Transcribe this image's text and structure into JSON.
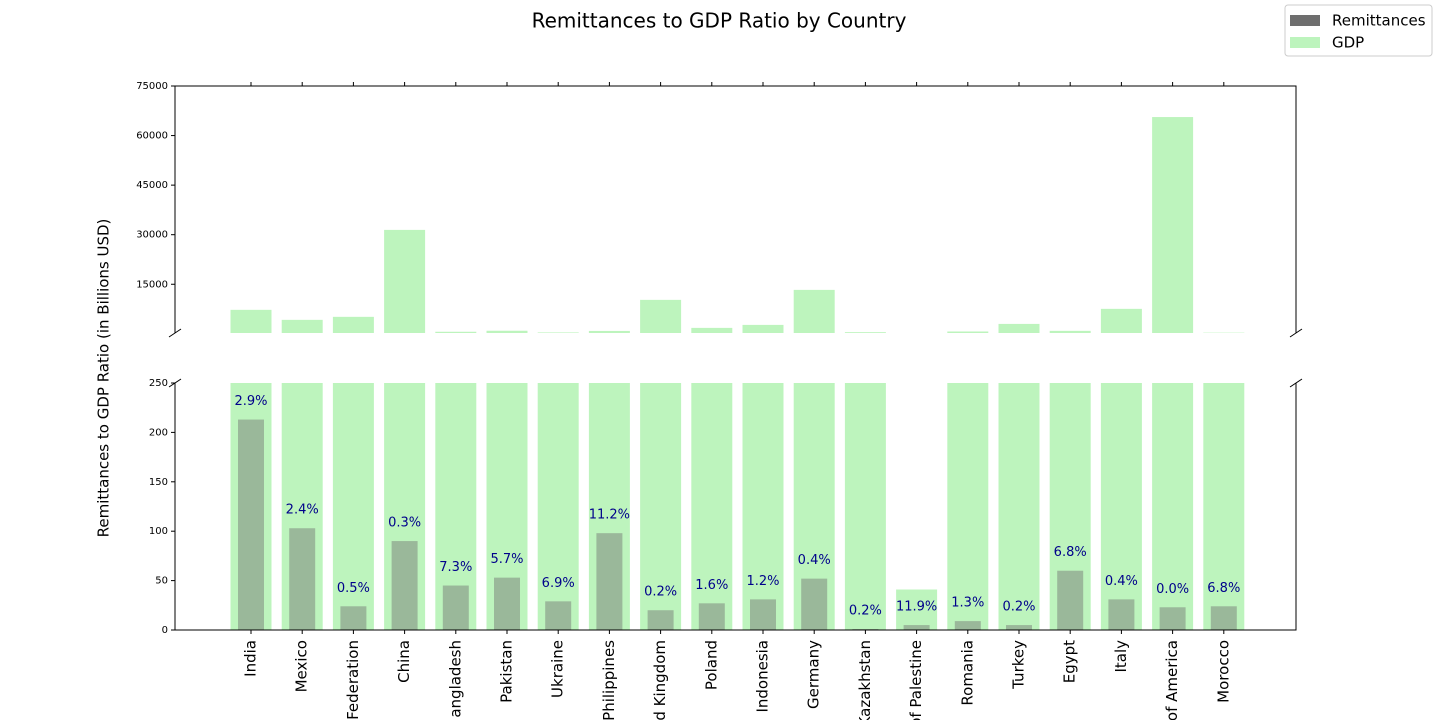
{
  "chart_data": {
    "type": "bar",
    "title": "Remittances to GDP Ratio by Country",
    "ylabel": "Remittances to GDP Ratio (in Billions USD)",
    "categories": [
      "India",
      "Mexico",
      "Federation",
      "China",
      "angladesh",
      "Pakistan",
      "Ukraine",
      "Philippines",
      "d Kingdom",
      "Poland",
      "Indonesia",
      "Germany",
      "Kazakhstan",
      "of Palestine",
      "Romania",
      "Turkey",
      "Egypt",
      "Italy",
      "of America",
      "Morocco"
    ],
    "series": [
      {
        "name": "Remittances",
        "color": "#6e6e6e",
        "values": [
          213,
          103,
          24,
          90,
          45,
          53,
          29,
          98,
          20,
          27,
          31,
          52,
          1,
          5,
          9,
          5,
          60,
          31,
          23,
          24
        ]
      },
      {
        "name": "GDP",
        "color": "#bdf4bd",
        "values": [
          7260,
          4230,
          5140,
          31450,
          620,
          930,
          420,
          875,
          10280,
          1800,
          2700,
          13300,
          500,
          41,
          700,
          3000,
          900,
          7560,
          65600,
          350
        ]
      }
    ],
    "annotations": [
      "2.9%",
      "2.4%",
      "0.5%",
      "0.3%",
      "7.3%",
      "5.7%",
      "6.9%",
      "11.2%",
      "0.2%",
      "1.6%",
      "1.2%",
      "0.4%",
      "0.2%",
      "11.9%",
      "1.3%",
      "0.2%",
      "6.8%",
      "0.4%",
      "0.0%",
      "6.8%"
    ],
    "ylim": [
      0,
      250
    ],
    "yticks": [
      0,
      50,
      100,
      150,
      200,
      250
    ],
    "ylim_upper": [
      250,
      75000
    ],
    "yticks_upper": [
      15000,
      30000,
      45000,
      60000,
      75000
    ],
    "legend": "upper right"
  }
}
